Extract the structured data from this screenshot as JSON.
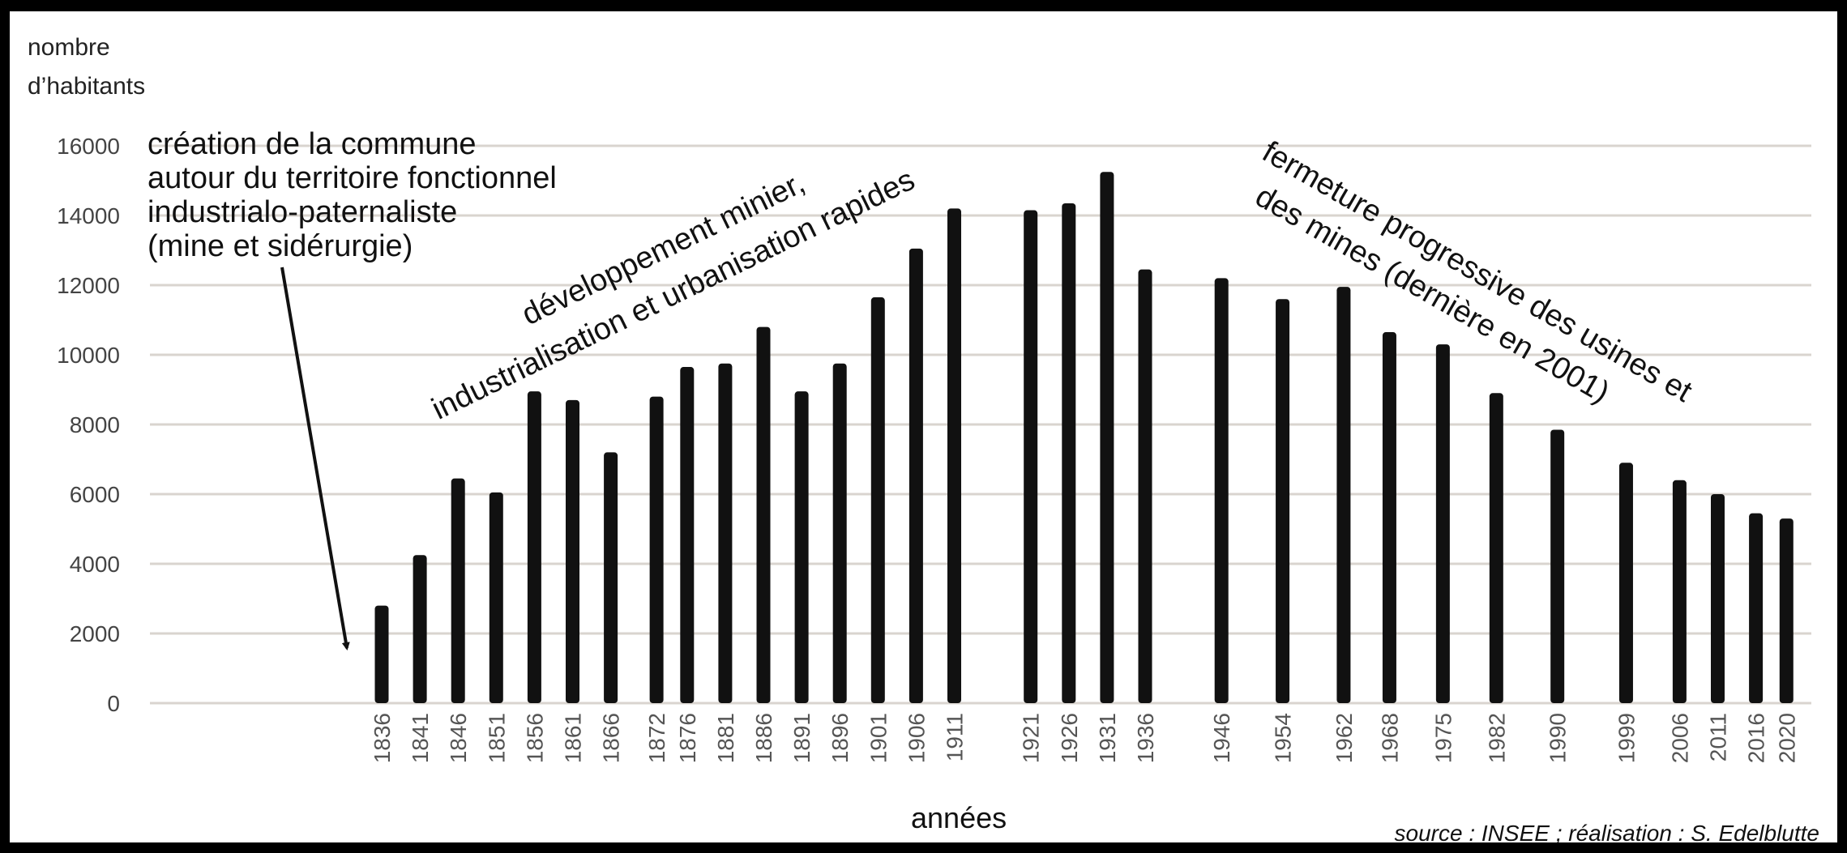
{
  "chart_data": {
    "type": "bar",
    "ylabel": [
      "nombre",
      "d’habitants"
    ],
    "xlabel": "années",
    "ylim": [
      0,
      16000
    ],
    "yticks": [
      0,
      2000,
      4000,
      6000,
      8000,
      10000,
      12000,
      14000,
      16000
    ],
    "grid": true,
    "categories": [
      "1836",
      "1841",
      "1846",
      "1851",
      "1856",
      "1861",
      "1866",
      "1872",
      "1876",
      "1881",
      "1886",
      "1891",
      "1896",
      "1901",
      "1906",
      "1911",
      "1921",
      "1926",
      "1931",
      "1936",
      "1946",
      "1954",
      "1962",
      "1968",
      "1975",
      "1982",
      "1990",
      "1999",
      "2006",
      "2011",
      "2016",
      "2020"
    ],
    "values": [
      2800,
      4250,
      6450,
      6050,
      8950,
      8700,
      7200,
      8800,
      9650,
      9750,
      10800,
      8950,
      9750,
      11650,
      13050,
      14200,
      14150,
      14350,
      15250,
      12450,
      12200,
      11600,
      11950,
      10650,
      10300,
      8900,
      7850,
      6900,
      6400,
      6000,
      5450,
      5300
    ],
    "annotations": {
      "creation": [
        "création de la commune",
        "autour du territoire fonctionnel",
        "industrialo-paternaliste",
        "(mine et sidérurgie)"
      ],
      "development": [
        "développement minier,",
        "industrialisation et urbanisation rapides"
      ],
      "closure": [
        "fermeture progressive des usines et",
        "des mines (dernière en 2001)"
      ]
    },
    "source": "source : INSEE ; réalisation : S. Edelblutte"
  }
}
